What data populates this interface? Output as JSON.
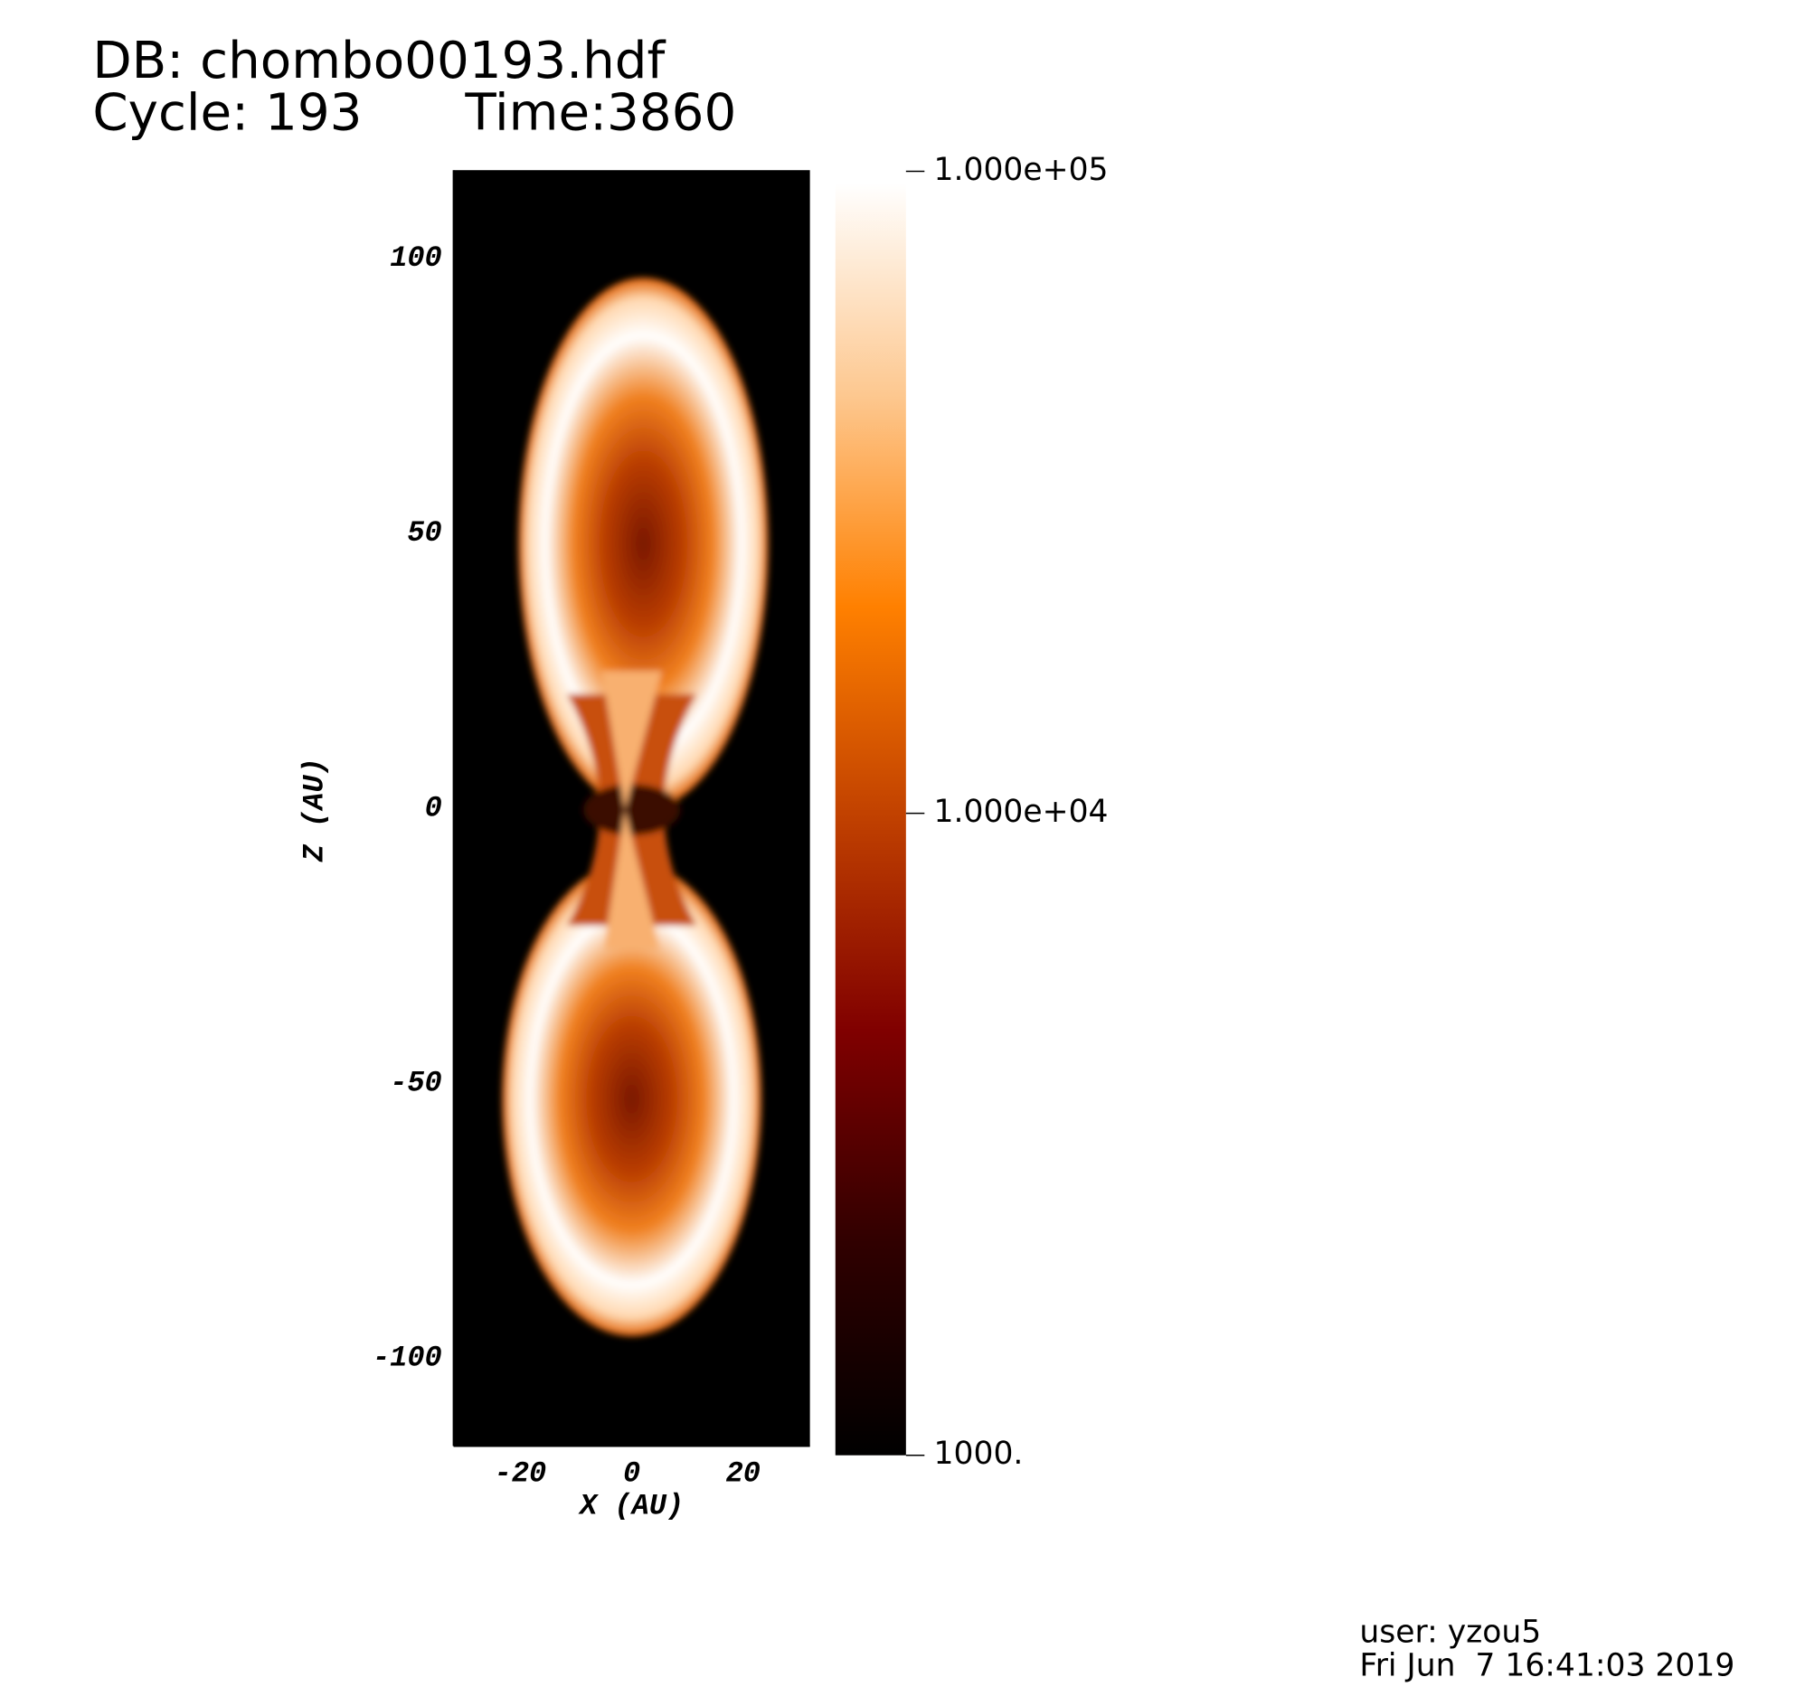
{
  "chart_data": {
    "type": "pseudocolor",
    "title": "DB: chombo00193.hdf",
    "cycle": "Cycle: 193",
    "time": "Time:3860",
    "xlabel": "X (AU)",
    "ylabel": "Z (AU)",
    "xlim": [
      -32,
      32
    ],
    "xticks": [
      -20,
      0,
      20
    ],
    "ylim": [
      -116,
      116
    ],
    "yticks": [
      -100,
      -50,
      0,
      50,
      100
    ],
    "colorbar": {
      "log": true,
      "clim": [
        1000,
        100000
      ],
      "ticks": [
        {
          "value": 100000,
          "label": "1.000e+05"
        },
        {
          "value": 10000,
          "label": "1.000e+04"
        },
        {
          "value": 1000,
          "label": "1000."
        }
      ],
      "colormap": [
        "#000000",
        "#300000",
        "#800000",
        "#c04000",
        "#ff8000",
        "#fdc890",
        "#ffffff"
      ]
    },
    "user": "user: yzou5",
    "date": "Fri Jun  7 16:41:03 2019"
  }
}
